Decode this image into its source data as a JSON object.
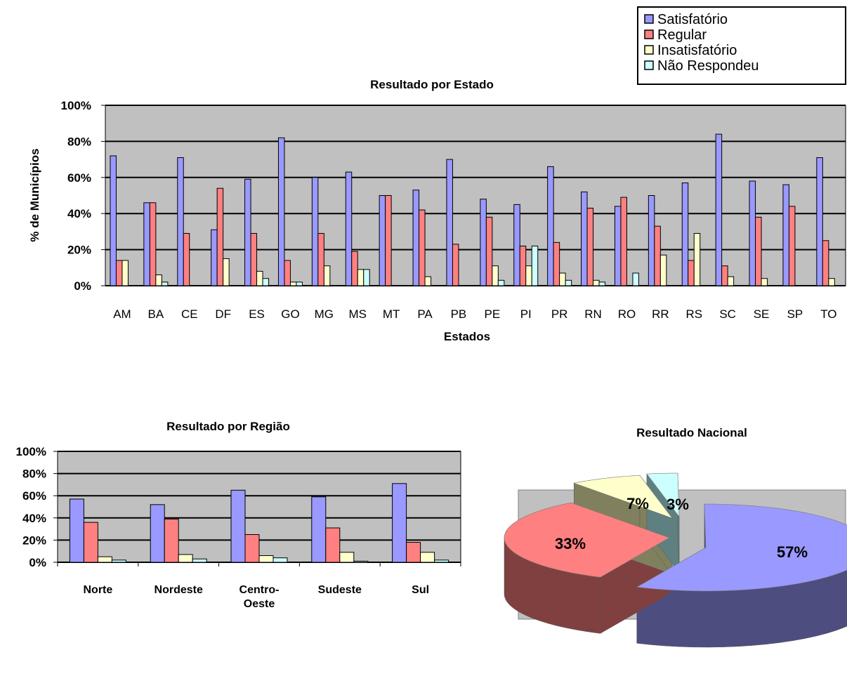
{
  "colors": {
    "satisfatorio": "#9999FF",
    "regular": "#FF8080",
    "insatisfatorio": "#FFFFCC",
    "nao_respondeu": "#CCFFFF",
    "plot_bg": "#C0C0C0"
  },
  "legend": {
    "items": [
      "Satisfatório",
      "Regular",
      "Insatisfatório",
      "Não Respondeu"
    ]
  },
  "chart_data": [
    {
      "type": "bar",
      "title": "Resultado por Estado",
      "xlabel": "Estados",
      "ylabel": "% de Municípios",
      "ylim": [
        0,
        100
      ],
      "yticks": [
        "0%",
        "20%",
        "40%",
        "60%",
        "80%",
        "100%"
      ],
      "grid": true,
      "legend_position": "top-right",
      "categories": [
        "AM",
        "BA",
        "CE",
        "DF",
        "ES",
        "GO",
        "MG",
        "MS",
        "MT",
        "PA",
        "PB",
        "PE",
        "PI",
        "PR",
        "RN",
        "RO",
        "RR",
        "RS",
        "SC",
        "SE",
        "SP",
        "TO"
      ],
      "series": [
        {
          "name": "Satisfatório",
          "values": [
            72,
            46,
            71,
            31,
            59,
            82,
            60,
            63,
            50,
            53,
            70,
            48,
            45,
            66,
            52,
            44,
            50,
            57,
            84,
            58,
            56,
            71
          ]
        },
        {
          "name": "Regular",
          "values": [
            14,
            46,
            29,
            54,
            29,
            14,
            29,
            19,
            50,
            42,
            23,
            38,
            22,
            24,
            43,
            49,
            33,
            14,
            11,
            38,
            44,
            25
          ]
        },
        {
          "name": "Insatisfatório",
          "values": [
            14,
            6,
            0,
            15,
            8,
            2,
            11,
            9,
            0,
            5,
            0,
            11,
            11,
            7,
            3,
            0,
            17,
            29,
            5,
            4,
            0,
            4
          ]
        },
        {
          "name": "Não Respondeu",
          "values": [
            0,
            2,
            0,
            0,
            4,
            2,
            0,
            9,
            0,
            0,
            0,
            3,
            22,
            3,
            2,
            7,
            0,
            0,
            0,
            0,
            0,
            0
          ]
        }
      ]
    },
    {
      "type": "bar",
      "title": "Resultado por Região",
      "xlabel": "",
      "ylabel": "",
      "ylim": [
        0,
        100
      ],
      "yticks": [
        "0%",
        "20%",
        "40%",
        "60%",
        "80%",
        "100%"
      ],
      "grid": true,
      "categories": [
        [
          "Norte"
        ],
        [
          "Nordeste"
        ],
        [
          "Centro-",
          "Oeste"
        ],
        [
          "Sudeste"
        ],
        [
          "Sul"
        ]
      ],
      "series": [
        {
          "name": "Satisfatório",
          "values": [
            57,
            52,
            65,
            59,
            71
          ]
        },
        {
          "name": "Regular",
          "values": [
            36,
            39,
            25,
            31,
            18
          ]
        },
        {
          "name": "Insatisfatório",
          "values": [
            5,
            7,
            6,
            9,
            9
          ]
        },
        {
          "name": "Não Respondeu",
          "values": [
            2,
            3,
            4,
            1,
            2
          ]
        }
      ]
    },
    {
      "type": "pie",
      "title": "Resultado Nacional",
      "labels": [
        "Satisfatório",
        "Regular",
        "Insatisfatório",
        "Não Respondeu"
      ],
      "values": [
        57,
        33,
        7,
        3
      ],
      "value_labels": [
        "57%",
        "33%",
        "7%",
        "3%"
      ]
    }
  ]
}
